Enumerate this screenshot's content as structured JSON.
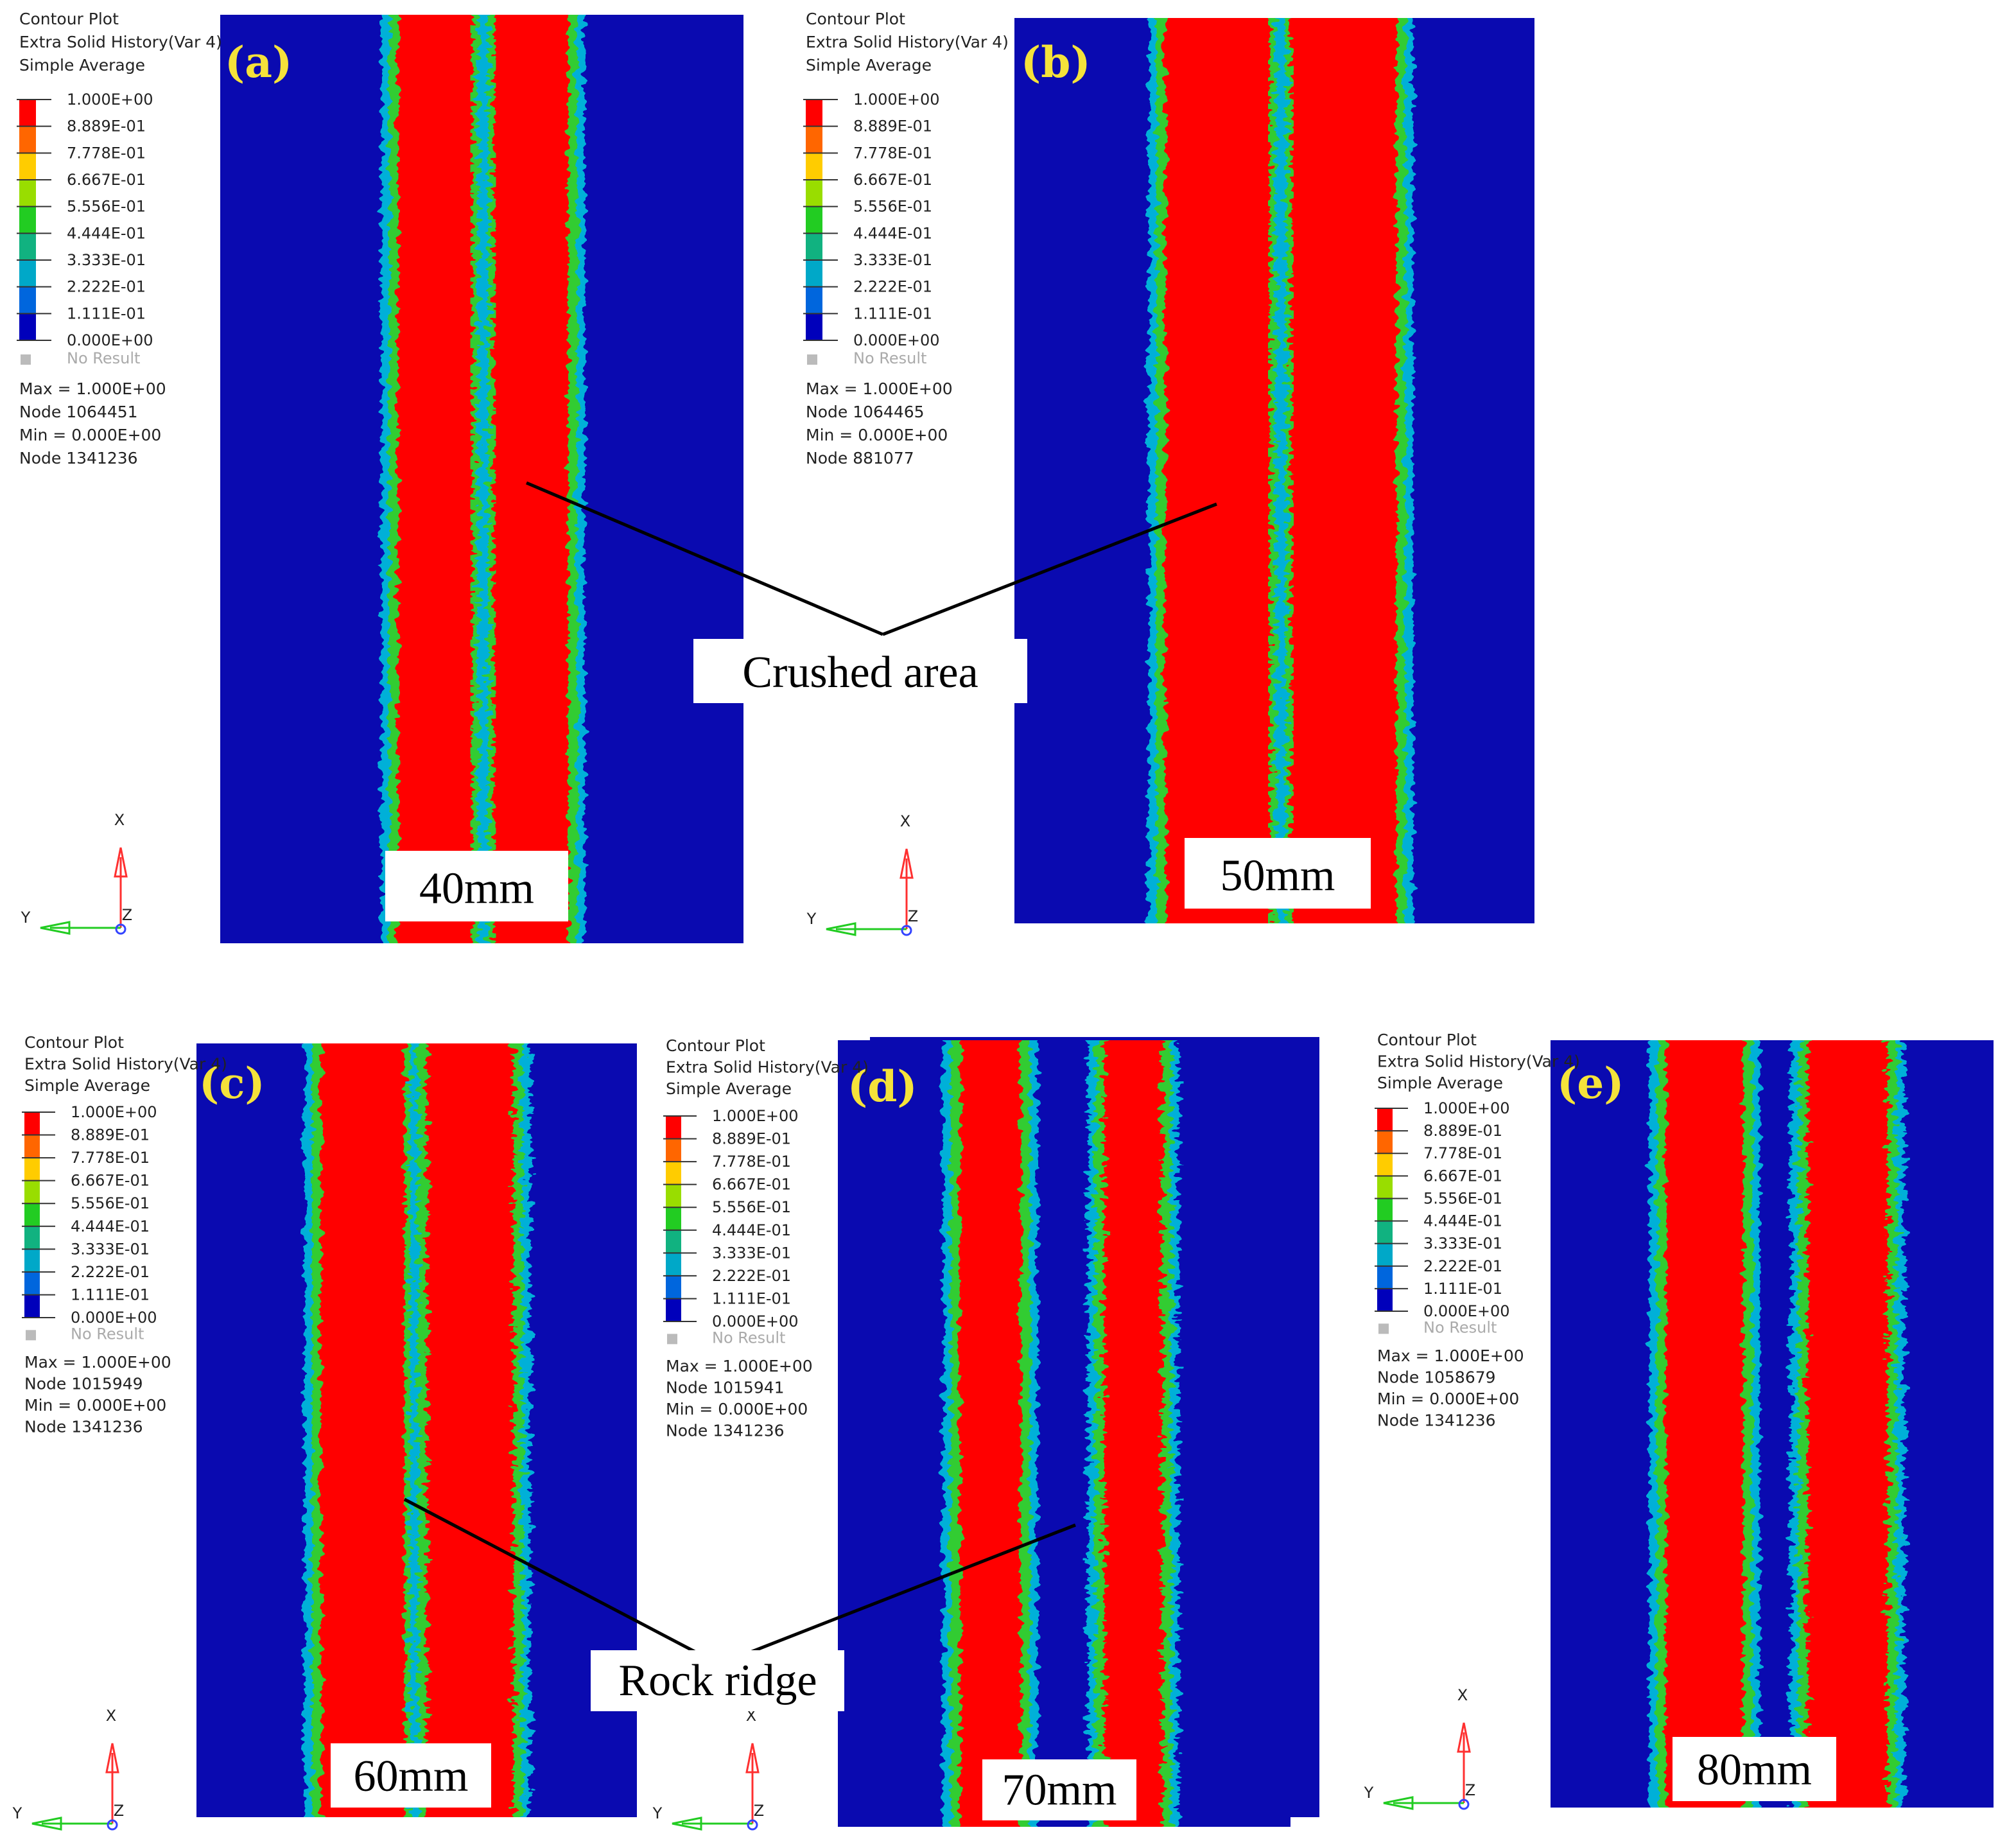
{
  "legend": {
    "title_lines": [
      "Contour Plot",
      "Extra Solid History(Var 4)",
      "Simple Average"
    ],
    "ticks": [
      "1.000E+00",
      "8.889E-01",
      "7.778E-01",
      "6.667E-01",
      "5.556E-01",
      "4.444E-01",
      "3.333E-01",
      "2.222E-01",
      "1.111E-01",
      "0.000E+00"
    ],
    "bands": [
      "#ff0000",
      "#ff6600",
      "#ffcc00",
      "#99dd00",
      "#22cc22",
      "#11b280",
      "#00a8c8",
      "#0066dd",
      "#0000bb"
    ],
    "no_result": "No Result",
    "max_label": "Max =  1.000E+00",
    "min_label": "Min =  0.000E+00"
  },
  "colors": {
    "rock": "#0a0ab0",
    "crushed": "#ff0000",
    "green": "#33cc33",
    "cyan": "#00b0d8",
    "label_yellow": "#f5e23a",
    "triad_x": "#ff3030",
    "triad_y": "#22cc22",
    "triad_z": "#3344ff"
  },
  "panels": [
    {
      "label": "(a)",
      "spacing": "40mm",
      "max_node": "Node 1064451",
      "min_node": "Node 1341236"
    },
    {
      "label": "(b)",
      "spacing": "50mm",
      "max_node": "Node 1064465",
      "min_node": "Node 881077"
    },
    {
      "label": "(c)",
      "spacing": "60mm",
      "max_node": "Node 1015949",
      "min_node": "Node 1341236"
    },
    {
      "label": "(d)",
      "spacing": "70mm",
      "max_node": "Node 1015941",
      "min_node": "Node 1341236"
    },
    {
      "label": "(e)",
      "spacing": "80mm",
      "max_node": "Node 1058679",
      "min_node": "Node 1341236"
    }
  ],
  "annotations": {
    "crushed": "Crushed area",
    "ridge": "Rock ridge"
  },
  "axes": {
    "x": "X",
    "y": "Y",
    "z": "Z"
  }
}
